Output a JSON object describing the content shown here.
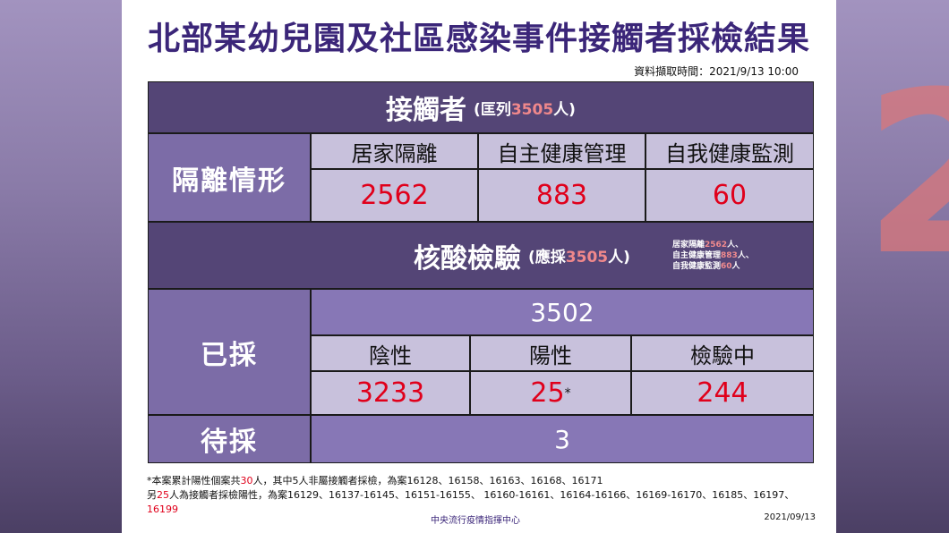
{
  "title": "北部某幼兒園及社區感染事件接觸者採檢結果",
  "data_time": "資料擷取時間：2021/9/13  10:00",
  "contacts": {
    "header": "接觸者",
    "paren_prefix": "(匡列",
    "paren_num": "3505",
    "paren_suffix": "人)"
  },
  "quarantine": {
    "side_label": "隔離情形",
    "columns": [
      "居家隔離",
      "自主健康管理",
      "自我健康監測"
    ],
    "values": [
      "2562",
      "883",
      "60"
    ]
  },
  "testing": {
    "header": "核酸檢驗",
    "paren_prefix": "(應採",
    "paren_num": "3505",
    "paren_suffix": "人)",
    "note_lines": [
      {
        "pre": "居家隔離",
        "num": "2562",
        "post": "人、"
      },
      {
        "pre": "自主健康管理",
        "num": "883",
        "post": "人、"
      },
      {
        "pre": "自我健康監測",
        "num": "60",
        "post": "人"
      }
    ]
  },
  "collected": {
    "side_label": "已採",
    "total": "3502",
    "columns": [
      "陰性",
      "陽性",
      "檢驗中"
    ],
    "values": [
      "3233",
      "25",
      "244"
    ],
    "positive_mark": "*"
  },
  "pending": {
    "side_label": "待採",
    "value": "3"
  },
  "footnote": {
    "line1_a": "*本案累計陽性個案共",
    "line1_num": "30",
    "line1_b": "人，其中5人非屬接觸者採檢，為案16128、16158、16163、16168、16171",
    "line2_a": "另",
    "line2_num": "25",
    "line2_b": "人為接觸者採檢陽性，為案16129、16137-16145、16151-16155、 16160-16161、16164-16166、16169-16170、16185、16197、",
    "line3": "16199"
  },
  "source": "中央流行疫情指揮中心",
  "date": "2021/09/13",
  "colors": {
    "title": "#3b2679",
    "header_bg": "#544576",
    "side_bg": "#7c6ca7",
    "cell_bg": "#c8c1dc",
    "value_red": "#e0001b",
    "highlight_pink": "#f0888b"
  }
}
